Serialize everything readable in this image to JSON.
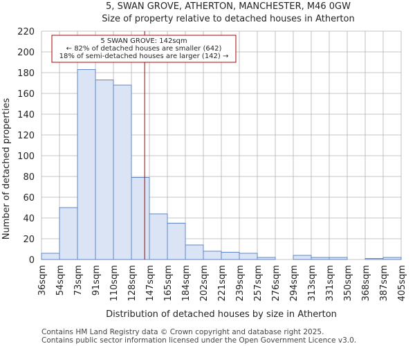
{
  "chart_data": {
    "type": "bar",
    "title": "5, SWAN GROVE, ATHERTON, MANCHESTER, M46 0GW",
    "subtitle": "Size of property relative to detached houses in Atherton",
    "xlabel": "Distribution of detached houses by size in Atherton",
    "ylabel": "Number of detached properties",
    "ylim": [
      0,
      220
    ],
    "yticks": [
      0,
      20,
      40,
      60,
      80,
      100,
      120,
      140,
      160,
      180,
      200,
      220
    ],
    "bin_edges": [
      36,
      54,
      73,
      91,
      110,
      128,
      147,
      165,
      184,
      202,
      221,
      239,
      257,
      276,
      294,
      313,
      331,
      350,
      368,
      387,
      405
    ],
    "tick_labels": [
      "36sqm",
      "54sqm",
      "73sqm",
      "91sqm",
      "110sqm",
      "128sqm",
      "147sqm",
      "165sqm",
      "184sqm",
      "202sqm",
      "221sqm",
      "239sqm",
      "257sqm",
      "276sqm",
      "294sqm",
      "313sqm",
      "331sqm",
      "350sqm",
      "368sqm",
      "387sqm",
      "405sqm"
    ],
    "values": [
      6,
      50,
      183,
      173,
      168,
      79,
      44,
      35,
      14,
      8,
      7,
      6,
      2,
      0,
      4,
      2,
      2,
      0,
      1,
      2
    ],
    "marker": {
      "value": 142,
      "color": "#aa0000",
      "lines": [
        "5 SWAN GROVE: 142sqm",
        "← 82% of detached houses are smaller (642)",
        "18% of semi-detached houses are larger (142) →"
      ]
    },
    "bar_fill": "#dae4f4",
    "bar_edge": "#5f86c4",
    "grid": true
  },
  "footer": [
    "Contains HM Land Registry data © Crown copyright and database right 2025.",
    "Contains public sector information licensed under the Open Government Licence v3.0."
  ]
}
